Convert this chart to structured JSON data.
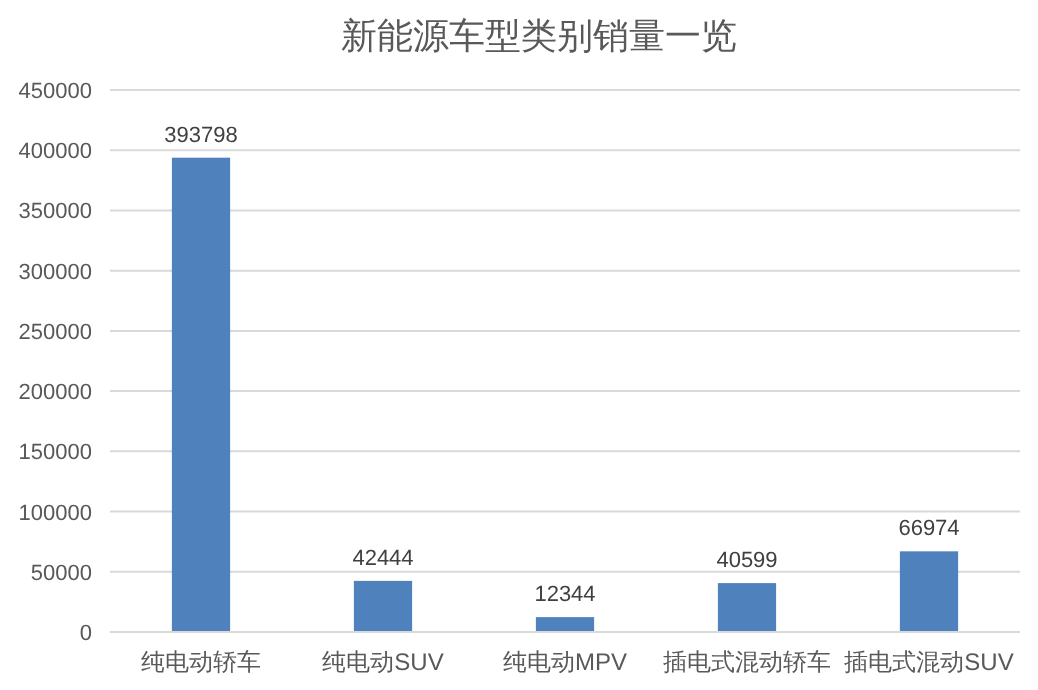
{
  "chart_data": {
    "type": "bar",
    "title": "新能源车型类别销量一览",
    "categories": [
      "纯电动轿车",
      "纯电动SUV",
      "纯电动MPV",
      "插电式混动轿车",
      "插电式混动SUV"
    ],
    "values": [
      393798,
      42444,
      12344,
      40599,
      66974
    ],
    "color": "#4f81bd",
    "ylim": [
      0,
      450000
    ],
    "yticks": [
      0,
      50000,
      100000,
      150000,
      200000,
      250000,
      300000,
      350000,
      400000,
      450000
    ],
    "grid": "y",
    "data_labels": true
  }
}
